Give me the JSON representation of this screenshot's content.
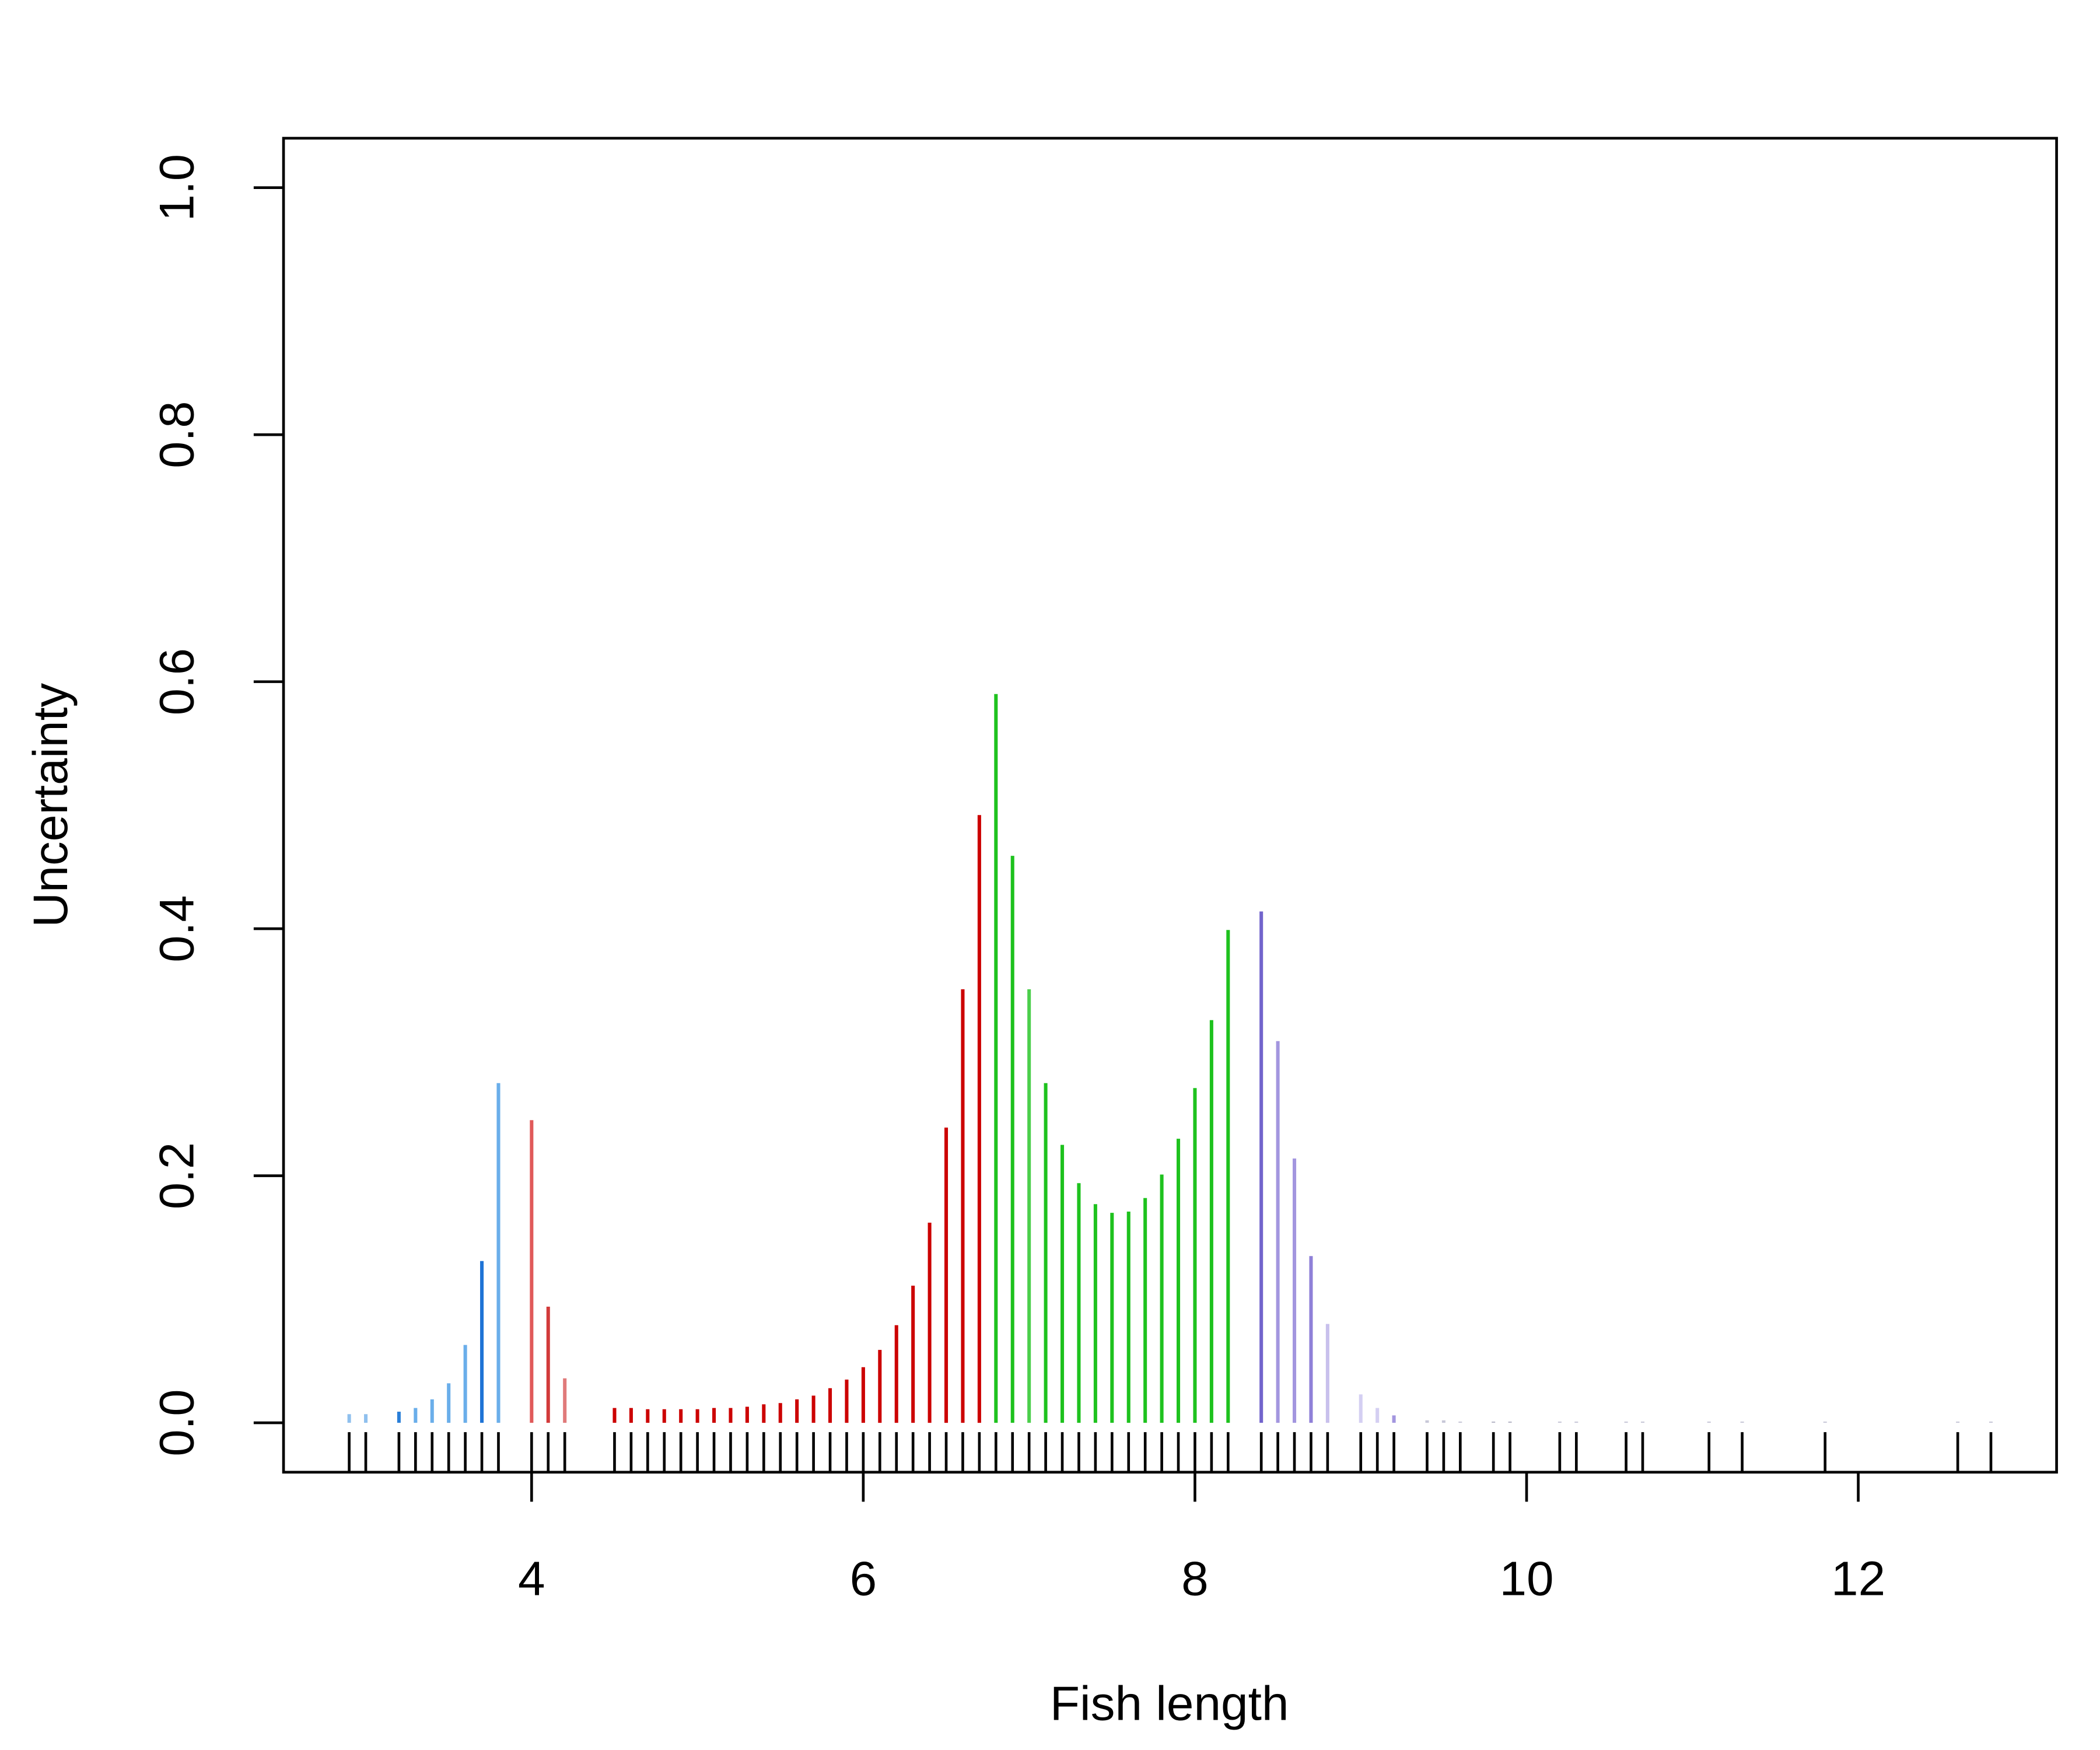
{
  "chart_data": {
    "type": "spike",
    "x_label": "Fish length",
    "y_label": "Uncertainty",
    "x": [
      2.9,
      3.0,
      3.2,
      3.3,
      3.4,
      3.5,
      3.6,
      3.7,
      3.8,
      4.0,
      4.1,
      4.2,
      4.5,
      4.6,
      4.7,
      4.8,
      4.9,
      5.0,
      5.1,
      5.2,
      5.3,
      5.4,
      5.5,
      5.6,
      5.7,
      5.8,
      5.9,
      6.0,
      6.1,
      6.2,
      6.3,
      6.4,
      6.5,
      6.6,
      6.7,
      6.8,
      6.9,
      7.0,
      7.1,
      7.2,
      7.3,
      7.4,
      7.5,
      7.6,
      7.7,
      7.8,
      7.9,
      8.0,
      8.1,
      8.2,
      8.4,
      8.5,
      8.6,
      8.7,
      8.8,
      9.0,
      9.1,
      9.2,
      9.4,
      9.5,
      9.6,
      9.8,
      9.9,
      10.2,
      10.3,
      10.6,
      10.7,
      11.1,
      11.3,
      11.8,
      12.6,
      12.8
    ],
    "values": [
      0.007,
      0.007,
      0.009,
      0.012,
      0.019,
      0.032,
      0.063,
      0.131,
      0.275,
      0.245,
      0.094,
      0.036,
      0.012,
      0.012,
      0.011,
      0.011,
      0.011,
      0.011,
      0.012,
      0.012,
      0.013,
      0.015,
      0.016,
      0.019,
      0.022,
      0.028,
      0.035,
      0.045,
      0.059,
      0.079,
      0.111,
      0.162,
      0.239,
      0.351,
      0.492,
      0.59,
      0.459,
      0.351,
      0.275,
      0.225,
      0.194,
      0.177,
      0.17,
      0.171,
      0.182,
      0.201,
      0.23,
      0.271,
      0.326,
      0.399,
      0.414,
      0.309,
      0.214,
      0.135,
      0.08,
      0.023,
      0.012,
      0.006,
      0.002,
      0.002,
      0.001,
      0.001,
      0.001,
      0.001,
      0.001,
      0.001,
      0.001,
      0.001,
      0.001,
      0.001,
      0.001,
      0.001
    ],
    "colors": [
      "#8fc0ee",
      "#8fc0ee",
      "#2a7fd8",
      "#6aaeea",
      "#6aaeea",
      "#6aaeea",
      "#6aaeea",
      "#1f74d6",
      "#6aaeea",
      "#e05a5a",
      "#d23a3a",
      "#e07a7a",
      "#cc0000",
      "#cc0000",
      "#cc0000",
      "#cc0000",
      "#cc0000",
      "#cc0000",
      "#cc0000",
      "#cc0000",
      "#cc0000",
      "#cc0000",
      "#cc0000",
      "#cc0000",
      "#cc0000",
      "#cc0000",
      "#cc0000",
      "#cc0000",
      "#cc0000",
      "#cc0000",
      "#cc0000",
      "#cc0000",
      "#cc0000",
      "#cc0000",
      "#cc0000",
      "#1ec21e",
      "#1ec21e",
      "#4ccf4c",
      "#1ec21e",
      "#1ec21e",
      "#1ec21e",
      "#1ec21e",
      "#1ec21e",
      "#1ec21e",
      "#1ec21e",
      "#1ec21e",
      "#1ec21e",
      "#1ec21e",
      "#1ec21e",
      "#1ec21e",
      "#7264cc",
      "#a396df",
      "#a396df",
      "#8f80d8",
      "#c8c0ec",
      "#d4cff2",
      "#d4cff2",
      "#a396df",
      "#c8c8d8",
      "#c8c8d8",
      "#c8c8d8",
      "#b8b8c8",
      "#b8b8c8",
      "#c8c8d8",
      "#c8c8d8",
      "#c8c8d8",
      "#c8c8d8",
      "#c8c8d8",
      "#c8c8d8",
      "#c8c8d8",
      "#c8c8d8",
      "#c8c8d8"
    ],
    "rug_color": "#000000",
    "xlim": [
      2.504,
      13.196
    ],
    "ylim": [
      -0.04,
      1.04
    ],
    "xticks": [
      4,
      6,
      8,
      10,
      12
    ],
    "yticks": [
      {
        "value": 0,
        "label": "0.0"
      },
      0.2,
      0.4,
      0.6,
      0.8,
      {
        "value": 1,
        "label": "1.0"
      }
    ]
  }
}
